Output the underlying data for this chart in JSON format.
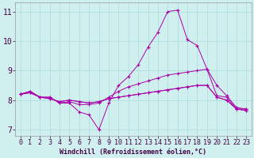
{
  "xlabel": "Windchill (Refroidissement éolien,°C)",
  "xlim": [
    -0.5,
    23.5
  ],
  "ylim": [
    6.8,
    11.3
  ],
  "yticks": [
    7,
    8,
    9,
    10,
    11
  ],
  "xticks": [
    0,
    1,
    2,
    3,
    4,
    5,
    6,
    7,
    8,
    9,
    10,
    11,
    12,
    13,
    14,
    15,
    16,
    17,
    18,
    19,
    20,
    21,
    22,
    23
  ],
  "background_color": "#d0f0f0",
  "grid_color": "#b0dede",
  "line_color": "#aa00aa",
  "lines": [
    [
      8.2,
      8.3,
      8.1,
      8.1,
      7.9,
      7.9,
      7.6,
      7.5,
      7.0,
      7.9,
      8.5,
      8.8,
      9.2,
      9.8,
      10.3,
      11.0,
      11.05,
      10.05,
      9.85,
      9.05,
      8.15,
      8.1,
      7.7,
      7.7
    ],
    [
      8.2,
      8.3,
      8.1,
      8.1,
      7.9,
      7.95,
      7.85,
      7.85,
      7.9,
      8.1,
      8.3,
      8.45,
      8.55,
      8.65,
      8.75,
      8.85,
      8.9,
      8.95,
      9.0,
      9.05,
      8.5,
      8.15,
      7.75,
      7.7
    ],
    [
      8.2,
      8.25,
      8.1,
      8.05,
      7.95,
      8.0,
      7.95,
      7.9,
      7.95,
      8.05,
      8.1,
      8.15,
      8.2,
      8.25,
      8.3,
      8.35,
      8.4,
      8.45,
      8.5,
      8.5,
      8.1,
      8.0,
      7.7,
      7.65
    ],
    [
      8.2,
      8.25,
      8.1,
      8.05,
      7.95,
      8.0,
      7.95,
      7.9,
      7.95,
      8.05,
      8.1,
      8.15,
      8.2,
      8.25,
      8.3,
      8.35,
      8.4,
      8.45,
      8.5,
      8.5,
      8.1,
      8.0,
      7.7,
      7.65
    ]
  ],
  "tick_fontsize": 6,
  "xlabel_fontsize": 6,
  "tick_color": "#440044",
  "xlabel_color": "#440044"
}
